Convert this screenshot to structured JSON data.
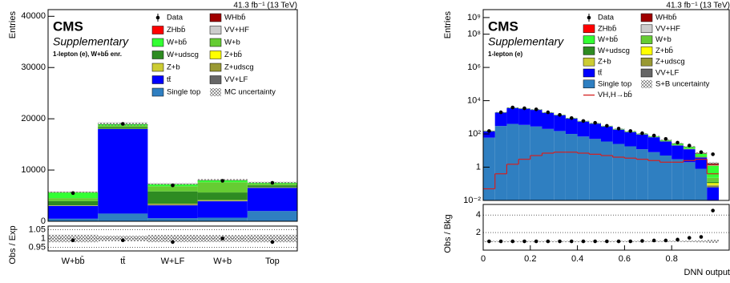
{
  "chart_data": [
    {
      "type": "bar",
      "title": "CMS",
      "subtitle": "Supplementary",
      "annotation": "1-lepton (e), W+bb̄ enr.",
      "lumi": "41.3 fb⁻¹ (13 TeV)",
      "ylabel": "Entries",
      "categories": [
        "W+bb̄",
        "tt̄",
        "W+LF",
        "W+b",
        "Top"
      ],
      "ylim": [
        0,
        41300
      ],
      "yticks": [
        0,
        10000,
        20000,
        30000,
        40000
      ],
      "series": [
        {
          "name": "Single top",
          "color": "#2f7fc1",
          "values": [
            500,
            1500,
            600,
            700,
            2000
          ]
        },
        {
          "name": "tt̄",
          "color": "#0000ff",
          "values": [
            2500,
            16500,
            2500,
            3200,
            4500
          ]
        },
        {
          "name": "VV+LF",
          "color": "#666666",
          "values": [
            30,
            20,
            120,
            60,
            40
          ]
        },
        {
          "name": "Z+udscg",
          "color": "#999933",
          "values": [
            40,
            30,
            150,
            70,
            50
          ]
        },
        {
          "name": "Z+b",
          "color": "#cccc33",
          "values": [
            20,
            10,
            40,
            60,
            20
          ]
        },
        {
          "name": "Z+bb̄",
          "color": "#ffff00",
          "values": [
            30,
            10,
            20,
            30,
            10
          ]
        },
        {
          "name": "W+udscg",
          "color": "#2e8b22",
          "values": [
            800,
            300,
            2400,
            1500,
            400
          ]
        },
        {
          "name": "W+b",
          "color": "#66cc33",
          "values": [
            600,
            300,
            1000,
            2000,
            300
          ]
        },
        {
          "name": "W+bb̄",
          "color": "#33ff33",
          "values": [
            1100,
            300,
            400,
            400,
            200
          ]
        },
        {
          "name": "VV+HF",
          "color": "#cccccc",
          "values": [
            40,
            10,
            30,
            40,
            10
          ]
        },
        {
          "name": "ZHbb̄",
          "color": "#ff0000",
          "values": [
            10,
            5,
            5,
            5,
            5
          ]
        },
        {
          "name": "WHbb̄",
          "color": "#a00000",
          "values": [
            20,
            5,
            5,
            10,
            5
          ]
        }
      ],
      "data": {
        "name": "Data",
        "values": [
          5500,
          19000,
          7000,
          7900,
          7500
        ]
      },
      "uncertainty": {
        "name": "MC uncertainty",
        "values": [
          120,
          300,
          150,
          160,
          160
        ]
      },
      "ratio": {
        "ylabel": "Obs / Exp",
        "ylim": [
          0.93,
          1.07
        ],
        "yticks": [
          0.95,
          1,
          1.05
        ],
        "values": [
          0.99,
          0.99,
          0.98,
          1.0,
          0.98
        ]
      }
    },
    {
      "type": "histogram",
      "log_y": true,
      "title": "CMS",
      "subtitle": "Supplementary",
      "annotation": "1-lepton (e)",
      "lumi": "41.3 fb⁻¹ (13 TeV)",
      "ylabel": "Entries",
      "xlabel": "DNN output",
      "bins": [
        0,
        0.05,
        0.1,
        0.15,
        0.2,
        0.25,
        0.3,
        0.35,
        0.4,
        0.45,
        0.5,
        0.55,
        0.6,
        0.65,
        0.7,
        0.75,
        0.8,
        0.85,
        0.9,
        0.95,
        1
      ],
      "xlim": [
        0,
        1
      ],
      "xticks": [
        0,
        0.2,
        0.4,
        0.6,
        0.8
      ],
      "ylim": [
        0.01,
        3000000000
      ],
      "yticks": [
        {
          "value": 0.01,
          "label": "10⁻²"
        },
        1,
        {
          "value": 100,
          "label": "10²"
        },
        {
          "value": 10000,
          "label": "10⁴"
        },
        {
          "value": 1000000,
          "label": "10⁶"
        },
        {
          "value": 100000000,
          "label": "10⁸"
        },
        {
          "value": 1000000000,
          "label": "10⁹"
        }
      ],
      "series": [
        {
          "name": "Single top",
          "color": "#2f7fc1",
          "values": [
            60,
            300,
            400,
            350,
            280,
            200,
            150,
            100,
            70,
            50,
            35,
            25,
            18,
            12,
            8,
            5,
            3,
            2,
            0.8,
            0.01
          ]
        },
        {
          "name": "tt̄",
          "color": "#0000ff",
          "values": [
            80,
            1600,
            3200,
            2900,
            2500,
            1650,
            1150,
            730,
            480,
            360,
            240,
            155,
            110,
            80,
            55,
            30,
            17,
            10,
            3,
            0.05
          ]
        },
        {
          "name": "VV+LF",
          "color": "#666666",
          "values": [
            1,
            5,
            8,
            7,
            6,
            4,
            3,
            2,
            1.5,
            1,
            0.8,
            0.5,
            0.4,
            0.3,
            0.2,
            0.1,
            0.1,
            0.05,
            0.02,
            0.01
          ]
        },
        {
          "name": "Z+udscg",
          "color": "#999933",
          "values": [
            1,
            8,
            10,
            9,
            7,
            5,
            3,
            2,
            1.5,
            1,
            0.8,
            0.5,
            0.4,
            0.3,
            0.2,
            0.1,
            0.1,
            0.05,
            0.02,
            0.01
          ]
        },
        {
          "name": "Z+b",
          "color": "#cccc33",
          "values": [
            0.5,
            3,
            5,
            4,
            3,
            2,
            1.5,
            1,
            0.8,
            0.5,
            0.4,
            0.3,
            0.2,
            0.2,
            0.1,
            0.1,
            0.05,
            0.05,
            0.02,
            0.01
          ]
        },
        {
          "name": "Z+bb̄",
          "color": "#ffff00",
          "values": [
            0.3,
            2,
            3,
            3,
            2,
            2,
            1,
            1,
            0.8,
            0.5,
            0.4,
            0.3,
            0.3,
            0.2,
            0.2,
            0.1,
            0.1,
            0.1,
            0.05,
            0.02
          ]
        },
        {
          "name": "W+udscg",
          "color": "#2e8b22",
          "values": [
            5,
            50,
            100,
            90,
            80,
            50,
            40,
            25,
            15,
            10,
            7,
            5,
            3,
            2,
            1.5,
            1,
            0.5,
            0.3,
            0.1,
            0.02
          ]
        },
        {
          "name": "W+b",
          "color": "#66cc33",
          "values": [
            3,
            30,
            60,
            60,
            50,
            35,
            25,
            15,
            12,
            9,
            6,
            5,
            4,
            3,
            2,
            2,
            1.5,
            1,
            0.5,
            0.1
          ]
        },
        {
          "name": "W+bb̄",
          "color": "#33ff33",
          "values": [
            2,
            20,
            40,
            40,
            35,
            30,
            25,
            20,
            15,
            12,
            10,
            8,
            7,
            6,
            5,
            4,
            4,
            3,
            2,
            1
          ]
        },
        {
          "name": "VV+HF",
          "color": "#cccccc",
          "values": [
            0.1,
            0.5,
            1,
            1,
            1,
            0.8,
            0.6,
            0.5,
            0.4,
            0.3,
            0.3,
            0.2,
            0.2,
            0.2,
            0.2,
            0.1,
            0.1,
            0.1,
            0.1,
            0.05
          ]
        },
        {
          "name": "ZHbb̄",
          "color": "#ff0000",
          "values": [
            0.01,
            0.05,
            0.1,
            0.1,
            0.1,
            0.1,
            0.1,
            0.1,
            0.1,
            0.1,
            0.1,
            0.1,
            0.1,
            0.1,
            0.1,
            0.1,
            0.1,
            0.1,
            0.1,
            0.1
          ]
        },
        {
          "name": "WHbb̄",
          "color": "#a00000",
          "values": [
            0.02,
            0.1,
            0.2,
            0.3,
            0.3,
            0.3,
            0.3,
            0.3,
            0.3,
            0.3,
            0.3,
            0.3,
            0.3,
            0.3,
            0.3,
            0.3,
            0.3,
            0.4,
            0.4,
            0.3
          ]
        }
      ],
      "signal": {
        "name": "VH,H→bb̄",
        "color": "#d42020",
        "values": [
          0.05,
          0.4,
          1.5,
          3,
          5,
          7,
          8,
          8,
          7,
          6,
          5,
          4,
          3.5,
          3,
          2.5,
          2,
          2,
          2.5,
          3,
          0.4
        ]
      },
      "data": {
        "name": "Data",
        "values": [
          150,
          2000,
          3900,
          3500,
          3000,
          2000,
          1400,
          900,
          600,
          470,
          310,
          210,
          150,
          110,
          80,
          50,
          30,
          20,
          8,
          6
        ]
      },
      "uncertainty": {
        "name": "S+B uncertainty",
        "values": [
          8,
          80,
          150,
          140,
          120,
          80,
          60,
          40,
          25,
          20,
          14,
          10,
          7,
          6,
          4,
          3,
          2,
          1.5,
          0.8,
          0.3
        ]
      },
      "ratio": {
        "ylabel": "Obs / Bkg",
        "ylim": [
          0,
          5.2
        ],
        "yticks": [
          2,
          4
        ],
        "values": [
          1.0,
          1.0,
          1.0,
          1.0,
          1.0,
          1.0,
          1.0,
          1.0,
          1.0,
          1.0,
          1.0,
          1.0,
          1.0,
          1.05,
          1.1,
          1.1,
          1.2,
          1.4,
          1.5,
          4.5
        ]
      }
    }
  ]
}
